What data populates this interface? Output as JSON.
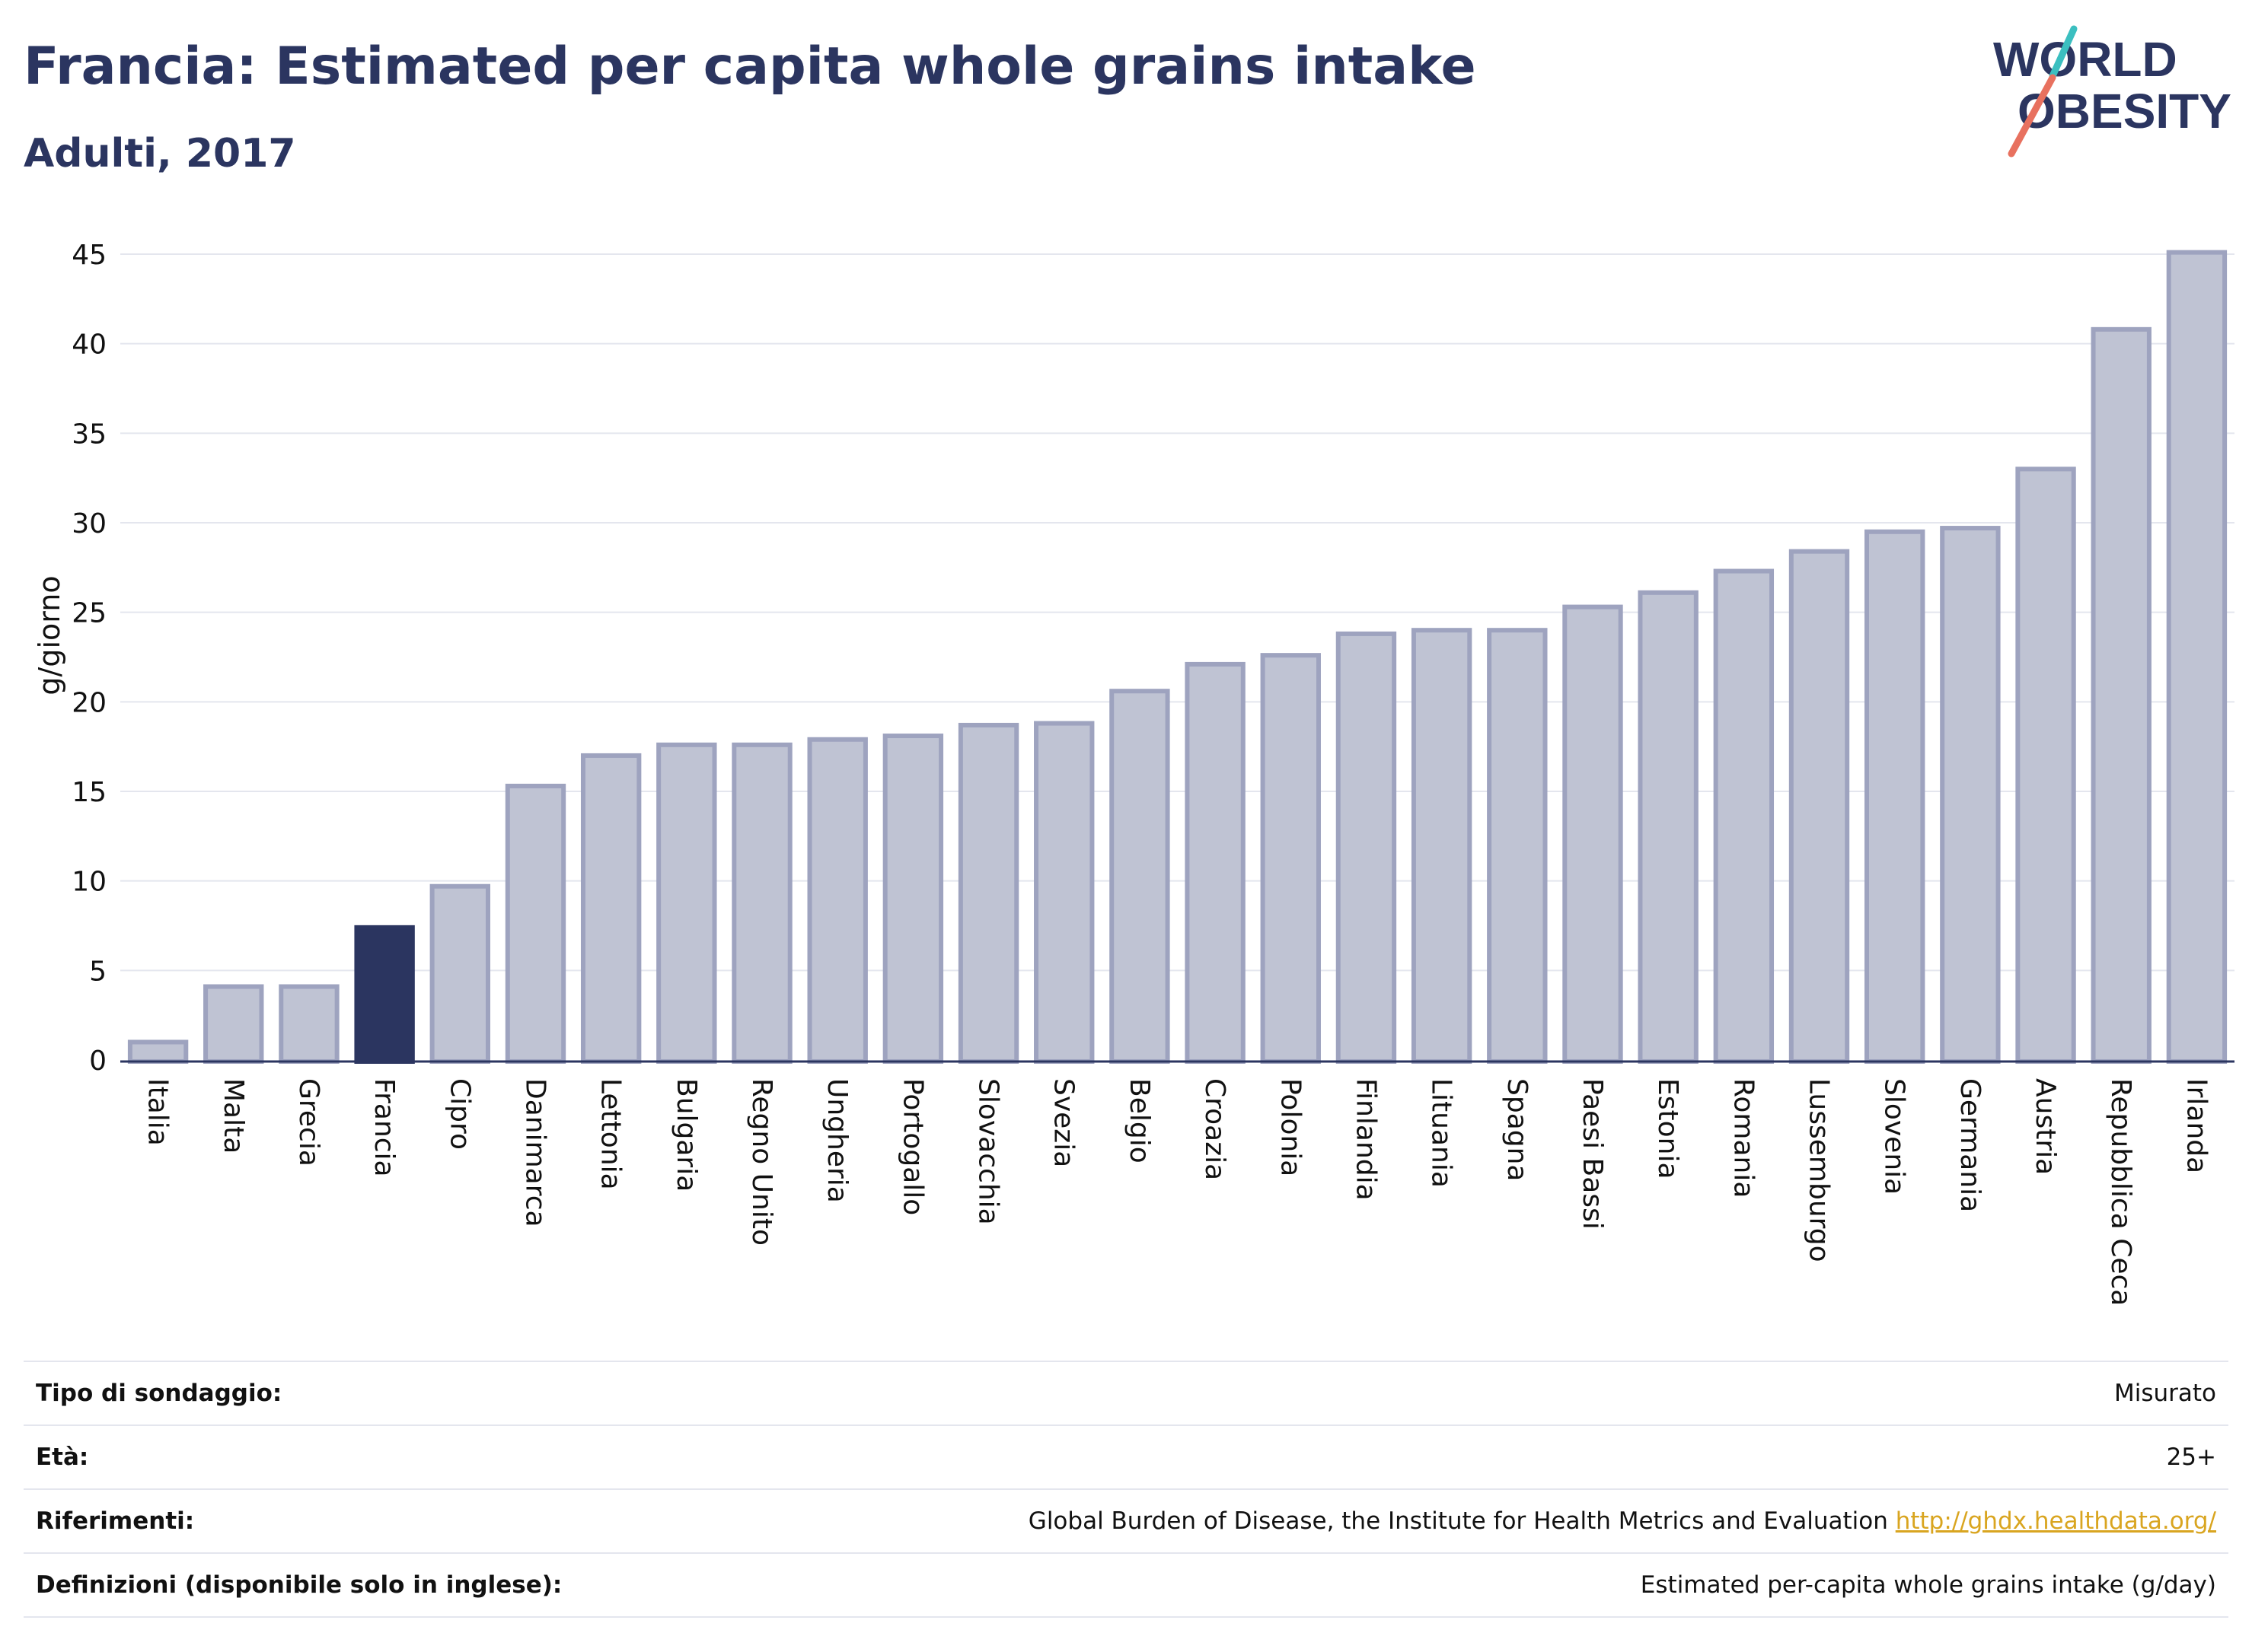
{
  "header": {
    "title": "Francia: Estimated per capita whole grains intake",
    "subtitle": "Adulti, 2017"
  },
  "logo": {
    "line1": "WORLD",
    "line2": "OBESITY"
  },
  "colors": {
    "highlight": "#2b3560",
    "bar_fill": "#bfc3d3",
    "bar_stroke": "#9ea3bf",
    "grid": "#e4e6ee",
    "text": "#2b3560",
    "link": "#d9a520",
    "logo_teal": "#3bbfc0",
    "logo_coral": "#e8715f"
  },
  "chart_data": {
    "type": "bar",
    "ylabel": "g/giorno",
    "ylim": [
      0,
      45
    ],
    "yticks": [
      0,
      5,
      10,
      15,
      20,
      25,
      30,
      35,
      40,
      45
    ],
    "grid": true,
    "highlight": "Francia",
    "categories": [
      "Italia",
      "Malta",
      "Grecia",
      "Francia",
      "Cipro",
      "Danimarca",
      "Lettonia",
      "Bulgaria",
      "Regno Unito",
      "Ungheria",
      "Portogallo",
      "Slovacchia",
      "Svezia",
      "Belgio",
      "Croazia",
      "Polonia",
      "Finlandia",
      "Lituania",
      "Spagna",
      "Paesi Bassi",
      "Estonia",
      "Romania",
      "Lussemburgo",
      "Slovenia",
      "Germania",
      "Austria",
      "Repubblica Ceca",
      "Irlanda"
    ],
    "values": [
      1.0,
      4.1,
      4.1,
      7.4,
      9.7,
      15.3,
      17.0,
      17.6,
      17.6,
      17.9,
      18.1,
      18.7,
      18.8,
      20.6,
      22.1,
      22.6,
      23.8,
      24.0,
      24.0,
      25.3,
      26.1,
      27.3,
      28.4,
      29.5,
      29.7,
      33.0,
      40.8,
      45.1
    ]
  },
  "info": [
    {
      "key": "Tipo di sondaggio:",
      "value": "Misurato"
    },
    {
      "key": "Età:",
      "value": "25+"
    },
    {
      "key": "Riferimenti:",
      "value": "Global Burden of Disease, the Institute for Health Metrics and Evaluation",
      "link": "http://ghdx.healthdata.org/"
    },
    {
      "key": "Definizioni (disponibile solo in inglese):",
      "value": "Estimated per-capita whole grains intake (g/day)"
    }
  ]
}
